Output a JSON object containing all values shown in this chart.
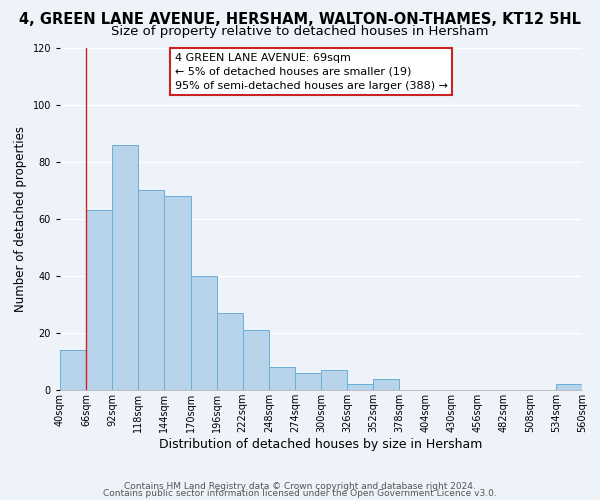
{
  "title": "4, GREEN LANE AVENUE, HERSHAM, WALTON-ON-THAMES, KT12 5HL",
  "subtitle": "Size of property relative to detached houses in Hersham",
  "xlabel": "Distribution of detached houses by size in Hersham",
  "ylabel": "Number of detached properties",
  "bin_edges": [
    40,
    66,
    92,
    118,
    144,
    170,
    196,
    222,
    248,
    274,
    300,
    326,
    352,
    378,
    404,
    430,
    456,
    482,
    508,
    534,
    560
  ],
  "bar_heights": [
    14,
    63,
    86,
    70,
    68,
    40,
    27,
    21,
    8,
    6,
    7,
    2,
    4,
    0,
    0,
    0,
    0,
    0,
    0,
    2
  ],
  "bar_color": "#b8d4ea",
  "bar_edge_color": "#6baed6",
  "reference_line_x": 66,
  "ylim": [
    0,
    120
  ],
  "annotation_line1": "4 GREEN LANE AVENUE: 69sqm",
  "annotation_line2": "← 5% of detached houses are smaller (19)",
  "annotation_line3": "95% of semi-detached houses are larger (388) →",
  "box_face_color": "#ffffff",
  "box_edge_color": "#cc2222",
  "footer_line1": "Contains HM Land Registry data © Crown copyright and database right 2024.",
  "footer_line2": "Contains public sector information licensed under the Open Government Licence v3.0.",
  "tick_labels": [
    "40sqm",
    "66sqm",
    "92sqm",
    "118sqm",
    "144sqm",
    "170sqm",
    "196sqm",
    "222sqm",
    "248sqm",
    "274sqm",
    "300sqm",
    "326sqm",
    "352sqm",
    "378sqm",
    "404sqm",
    "430sqm",
    "456sqm",
    "482sqm",
    "508sqm",
    "534sqm",
    "560sqm"
  ],
  "background_color": "#eef2f9",
  "grid_color": "#ffffff",
  "title_fontsize": 10.5,
  "subtitle_fontsize": 9.5,
  "xlabel_fontsize": 9,
  "ylabel_fontsize": 8.5,
  "tick_fontsize": 7,
  "annotation_fontsize": 8,
  "footer_fontsize": 6.5
}
